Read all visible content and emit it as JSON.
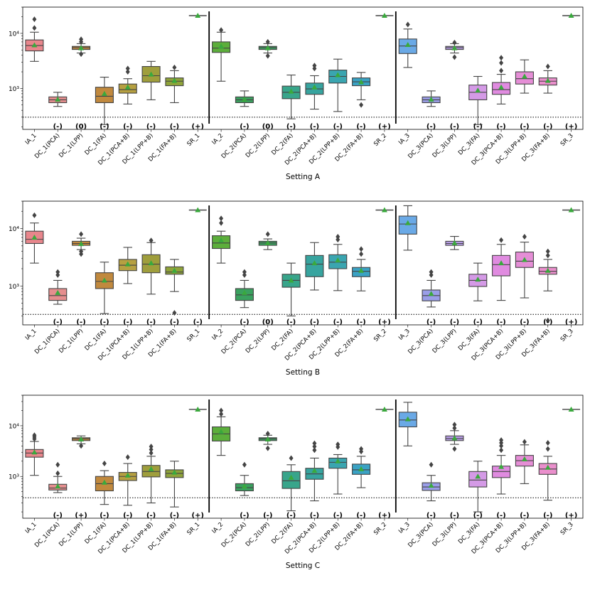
{
  "figure": {
    "type": "box",
    "y_scale": "log",
    "colors": {
      "IA": [
        "#e8868c",
        "#5cae3b",
        "#6aa9e6"
      ],
      "DC_PCA": [
        "#e58e8e",
        "#3aa15f",
        "#9a9ee8"
      ],
      "DC_LPP": [
        "#c1893e",
        "#3aa15f",
        "#b99ee8"
      ],
      "DC_FA": [
        "#c1893e",
        "#38a58b",
        "#d49ae6"
      ],
      "DC_PCA_B": [
        "#b6a041",
        "#37a49f",
        "#e08be0"
      ],
      "DC_LPP_B": [
        "#9f9e3c",
        "#3aa5b0",
        "#e58ed6"
      ],
      "DC_FA_B": [
        "#8fa33a",
        "#3aa2c4",
        "#ea8fcc"
      ],
      "SR": "#3a9e3f",
      "mean_marker": "#3aa93d"
    }
  },
  "chart_data": [
    {
      "type": "box",
      "xlabel": "Setting A",
      "ylim": [
        180,
        30000
      ],
      "threshold": 300,
      "yticks": [
        {
          "v": 1000,
          "label": "10³"
        },
        {
          "v": 10000,
          "label": "10⁴"
        }
      ],
      "categories": [
        "IA_1",
        "DC_1(PCA)",
        "DC_1(LPP)",
        "DC_1(FA)",
        "DC_1(PCA+B)",
        "DC_1(LPP+B)",
        "DC_1(FA+B)",
        "SR_1",
        "IA_2",
        "DC_2(PCA)",
        "DC_2(LPP)",
        "DC_2(FA)",
        "DC_2(PCA+B)",
        "DC_2(LPP+B)",
        "DC_2(FA+B)",
        "SR_2",
        "IA_3",
        "DC_3(PCA)",
        "DC_3(LPP)",
        "DC_3(FA)",
        "DC_3(PCA+B)",
        "DC_3(LPP+B)",
        "DC_3(FA+B)",
        "SR_3"
      ],
      "annotations": [
        "",
        "(-)",
        "(0)",
        "(-)",
        "(-)",
        "(-)",
        "(-)",
        "(+)",
        "",
        "(-)",
        "(0)",
        "(-)",
        "(-)",
        "(-)",
        "(-)",
        "(+)",
        "",
        "(-)",
        "(-)",
        "(-)",
        "(-)",
        "(-)",
        "(-)",
        "(+)"
      ],
      "boxes": [
        {
          "lw": 3100,
          "q1": 4800,
          "med": 6000,
          "q3": 7600,
          "uw": 10500,
          "mean": 6100,
          "fl": [
            12500,
            18000
          ]
        },
        {
          "lw": 470,
          "q1": 550,
          "med": 620,
          "q3": 700,
          "uw": 850,
          "mean": 630,
          "fl": []
        },
        {
          "lw": 4400,
          "q1": 5100,
          "med": 5500,
          "q3": 5800,
          "uw": 6500,
          "mean": 5400,
          "fl": [
            4200,
            7000,
            7800
          ]
        },
        {
          "lw": 220,
          "q1": 550,
          "med": 720,
          "q3": 1050,
          "uw": 1600,
          "mean": 800,
          "fl": []
        },
        {
          "lw": 520,
          "q1": 820,
          "med": 950,
          "q3": 1200,
          "uw": 1500,
          "mean": 1050,
          "fl": [
            2000,
            2300
          ]
        },
        {
          "lw": 620,
          "q1": 1300,
          "med": 1700,
          "q3": 2500,
          "uw": 3100,
          "mean": 1800,
          "fl": []
        },
        {
          "lw": 550,
          "q1": 1120,
          "med": 1350,
          "q3": 1550,
          "uw": 2100,
          "mean": 1380,
          "fl": [
            2400
          ]
        },
        {
          "lw": 21000,
          "q1": 21000,
          "med": 21000,
          "q3": 21000,
          "uw": 21000,
          "mean": 21000,
          "fl": []
        },
        {
          "lw": 1350,
          "q1": 4500,
          "med": 5400,
          "q3": 7000,
          "uw": 10500,
          "mean": 5800,
          "fl": [
            11500
          ]
        },
        {
          "lw": 470,
          "q1": 550,
          "med": 620,
          "q3": 700,
          "uw": 900,
          "mean": 630,
          "fl": []
        },
        {
          "lw": 4400,
          "q1": 5100,
          "med": 5500,
          "q3": 5800,
          "uw": 6500,
          "mean": 5400,
          "fl": [
            3900,
            7000
          ]
        },
        {
          "lw": 280,
          "q1": 650,
          "med": 850,
          "q3": 1100,
          "uw": 1750,
          "mean": 880,
          "fl": []
        },
        {
          "lw": 420,
          "q1": 780,
          "med": 980,
          "q3": 1250,
          "uw": 1700,
          "mean": 1050,
          "fl": [
            2300,
            2600
          ]
        },
        {
          "lw": 380,
          "q1": 1250,
          "med": 1650,
          "q3": 2150,
          "uw": 3400,
          "mean": 1750,
          "fl": []
        },
        {
          "lw": 620,
          "q1": 1120,
          "med": 1320,
          "q3": 1550,
          "uw": 1950,
          "mean": 1300,
          "fl": [
            500
          ]
        },
        {
          "lw": 21000,
          "q1": 21000,
          "med": 21000,
          "q3": 21000,
          "uw": 21000,
          "mean": 21000,
          "fl": []
        },
        {
          "lw": 2400,
          "q1": 4300,
          "med": 5900,
          "q3": 7900,
          "uw": 12000,
          "mean": 6200,
          "fl": [
            14500
          ]
        },
        {
          "lw": 470,
          "q1": 550,
          "med": 620,
          "q3": 700,
          "uw": 900,
          "mean": 630,
          "fl": []
        },
        {
          "lw": 4400,
          "q1": 5100,
          "med": 5500,
          "q3": 5800,
          "uw": 6500,
          "mean": 5400,
          "fl": [
            3700,
            6800
          ]
        },
        {
          "lw": 220,
          "q1": 620,
          "med": 850,
          "q3": 1150,
          "uw": 1650,
          "mean": 920,
          "fl": []
        },
        {
          "lw": 520,
          "q1": 780,
          "med": 950,
          "q3": 1280,
          "uw": 1800,
          "mean": 1050,
          "fl": [
            2100,
            2900,
            3600
          ]
        },
        {
          "lw": 820,
          "q1": 1200,
          "med": 1500,
          "q3": 2000,
          "uw": 3300,
          "mean": 1650,
          "fl": []
        },
        {
          "lw": 820,
          "q1": 1150,
          "med": 1350,
          "q3": 1550,
          "uw": 2100,
          "mean": 1380,
          "fl": [
            2500
          ]
        },
        {
          "lw": 21000,
          "q1": 21000,
          "med": 21000,
          "q3": 21000,
          "uw": 21000,
          "mean": 21000,
          "fl": []
        }
      ]
    },
    {
      "type": "box",
      "xlabel": "Setting B",
      "ylim": [
        210,
        30000
      ],
      "threshold": 320,
      "yticks": [
        {
          "v": 1000,
          "label": "10³"
        },
        {
          "v": 10000,
          "label": "10⁴"
        }
      ],
      "categories": [
        "IA_1",
        "DC_1(PCA)",
        "DC_1(LPP)",
        "DC_1(FA)",
        "DC_1(PCA+B)",
        "DC_1(LPP+B)",
        "DC_1(FA+B)",
        "SR_1",
        "IA_2",
        "DC_2(PCA)",
        "DC_2(LPP)",
        "DC_2(FA)",
        "DC_2(PCA+B)",
        "DC_2(LPP+B)",
        "DC_2(FA+B)",
        "SR_2",
        "IA_3",
        "DC_3(PCA)",
        "DC_3(LPP)",
        "DC_3(FA)",
        "DC_3(PCA+B)",
        "DC_3(LPP+B)",
        "DC_3(FA+B)",
        "SR_3"
      ],
      "annotations": [
        "",
        "(-)",
        "(-)",
        "(-)",
        "(-)",
        "(-)",
        "(-)",
        "(-)",
        "",
        "(-)",
        "(0)",
        "(-)",
        "(-)",
        "(-)",
        "(-)",
        "(+)",
        "",
        "(-)",
        "(-)",
        "(-)",
        "(-)",
        "(-)",
        "(-)",
        "(+)"
      ],
      "boxes": [
        {
          "lw": 2500,
          "q1": 5500,
          "med": 6500,
          "q3": 9000,
          "uw": 12500,
          "mean": 7000,
          "fl": [
            17000
          ]
        },
        {
          "lw": 480,
          "q1": 560,
          "med": 680,
          "q3": 900,
          "uw": 1250,
          "mean": 760,
          "fl": [
            1550,
            1750
          ]
        },
        {
          "lw": 4300,
          "q1": 5100,
          "med": 5500,
          "q3": 6000,
          "uw": 6800,
          "mean": 5400,
          "fl": [
            3600,
            4000,
            8000
          ]
        },
        {
          "lw": 330,
          "q1": 900,
          "med": 1200,
          "q3": 1700,
          "uw": 2600,
          "mean": 1250,
          "fl": []
        },
        {
          "lw": 1100,
          "q1": 1850,
          "med": 2300,
          "q3": 2900,
          "uw": 4700,
          "mean": 2400,
          "fl": []
        },
        {
          "lw": 720,
          "q1": 1700,
          "med": 2400,
          "q3": 3500,
          "uw": 5700,
          "mean": 2500,
          "fl": [
            6200
          ]
        },
        {
          "lw": 800,
          "q1": 1600,
          "med": 1750,
          "q3": 2150,
          "uw": 2900,
          "mean": 1850,
          "fl": [
            340
          ]
        },
        {
          "lw": 21000,
          "q1": 21000,
          "med": 21000,
          "q3": 21000,
          "uw": 21000,
          "mean": 21000,
          "fl": []
        },
        {
          "lw": 2500,
          "q1": 4500,
          "med": 5600,
          "q3": 7500,
          "uw": 9000,
          "mean": 6200,
          "fl": [
            12500,
            15000
          ]
        },
        {
          "lw": 420,
          "q1": 560,
          "med": 700,
          "q3": 900,
          "uw": 1250,
          "mean": 760,
          "fl": [
            1550,
            1750
          ]
        },
        {
          "lw": 4300,
          "q1": 5100,
          "med": 5600,
          "q3": 6000,
          "uw": 6600,
          "mean": 5600,
          "fl": [
            8000
          ]
        },
        {
          "lw": 300,
          "q1": 950,
          "med": 1250,
          "q3": 1600,
          "uw": 2500,
          "mean": 1250,
          "fl": []
        },
        {
          "lw": 850,
          "q1": 1450,
          "med": 2400,
          "q3": 3400,
          "uw": 5700,
          "mean": 2500,
          "fl": []
        },
        {
          "lw": 830,
          "q1": 2000,
          "med": 2600,
          "q3": 3500,
          "uw": 5300,
          "mean": 2800,
          "fl": [
            6400,
            7200
          ]
        },
        {
          "lw": 820,
          "q1": 1450,
          "med": 1800,
          "q3": 2100,
          "uw": 2900,
          "mean": 1850,
          "fl": [
            3600,
            4400
          ]
        },
        {
          "lw": 21000,
          "q1": 21000,
          "med": 21000,
          "q3": 21000,
          "uw": 21000,
          "mean": 21000,
          "fl": []
        },
        {
          "lw": 4200,
          "q1": 8000,
          "med": 12000,
          "q3": 16500,
          "uw": 25000,
          "mean": 12500,
          "fl": []
        },
        {
          "lw": 430,
          "q1": 550,
          "med": 680,
          "q3": 850,
          "uw": 1250,
          "mean": 730,
          "fl": [
            1550,
            1750
          ]
        },
        {
          "lw": 4300,
          "q1": 5100,
          "med": 5500,
          "q3": 6000,
          "uw": 7300,
          "mean": 5600,
          "fl": []
        },
        {
          "lw": 550,
          "q1": 980,
          "med": 1250,
          "q3": 1600,
          "uw": 2500,
          "mean": 1300,
          "fl": []
        },
        {
          "lw": 560,
          "q1": 1500,
          "med": 2350,
          "q3": 3400,
          "uw": 5300,
          "mean": 2500,
          "fl": [
            6300
          ]
        },
        {
          "lw": 620,
          "q1": 2100,
          "med": 2700,
          "q3": 3900,
          "uw": 5800,
          "mean": 2850,
          "fl": [
            7200
          ]
        },
        {
          "lw": 820,
          "q1": 1600,
          "med": 1800,
          "q3": 2100,
          "uw": 2900,
          "mean": 1850,
          "fl": [
            250,
            3400,
            4000
          ]
        },
        {
          "lw": 21000,
          "q1": 21000,
          "med": 21000,
          "q3": 21000,
          "uw": 21000,
          "mean": 21000,
          "fl": []
        }
      ]
    },
    {
      "type": "box",
      "xlabel": "Setting C",
      "ylim": [
        150,
        40000
      ],
      "threshold": 380,
      "yticks": [
        {
          "v": 1000,
          "label": "10³"
        },
        {
          "v": 10000,
          "label": "10⁴"
        }
      ],
      "categories": [
        "IA_1",
        "DC_1(PCA)",
        "DC_1(LPP)",
        "DC_1(FA)",
        "DC_1(PCA+B)",
        "DC_1(LPP+B)",
        "DC_1(FA+B)",
        "SR_1",
        "IA_2",
        "DC_2(PCA)",
        "DC_2(LPP)",
        "DC_2(FA)",
        "DC_2(PCA+B)",
        "DC_2(LPP+B)",
        "DC_2(FA+B)",
        "SR_2",
        "IA_3",
        "DC_3(PCA)",
        "DC_3(LPP)",
        "DC_3(FA)",
        "DC_3(PCA+B)",
        "DC_3(LPP+B)",
        "DC_3(FA+B)",
        "SR_3"
      ],
      "annotations": [
        "",
        "(-)",
        "(+)",
        "(-)",
        "(-)",
        "(-)",
        "(-)",
        "(+)",
        "",
        "(-)",
        "(-)",
        "(-)",
        "(-)",
        "(-)",
        "(-)",
        "(+)",
        "",
        "(-)",
        "(-)",
        "(-)",
        "(-)",
        "(-)",
        "(-)",
        "(+)"
      ],
      "boxes": [
        {
          "lw": 1050,
          "q1": 2400,
          "med": 2900,
          "q3": 3400,
          "uw": 4900,
          "mean": 3000,
          "fl": [
            5500,
            6000,
            6500
          ]
        },
        {
          "lw": 480,
          "q1": 540,
          "med": 590,
          "q3": 700,
          "uw": 1000,
          "mean": 640,
          "fl": [
            1150,
            1700
          ]
        },
        {
          "lw": 4400,
          "q1": 5100,
          "med": 5500,
          "q3": 5800,
          "uw": 6300,
          "mean": 5400,
          "fl": [
            4000
          ]
        },
        {
          "lw": 280,
          "q1": 520,
          "med": 720,
          "q3": 1000,
          "uw": 1300,
          "mean": 760,
          "fl": [
            1800
          ]
        },
        {
          "lw": 270,
          "q1": 830,
          "med": 1000,
          "q3": 1200,
          "uw": 1800,
          "mean": 1050,
          "fl": [
            2400
          ]
        },
        {
          "lw": 300,
          "q1": 980,
          "med": 1250,
          "q3": 1650,
          "uw": 2500,
          "mean": 1400,
          "fl": [
            2900,
            3400,
            3900
          ]
        },
        {
          "lw": 250,
          "q1": 950,
          "med": 1150,
          "q3": 1350,
          "uw": 2000,
          "mean": 1200,
          "fl": []
        },
        {
          "lw": 21000,
          "q1": 21000,
          "med": 21000,
          "q3": 21000,
          "uw": 21000,
          "mean": 21000,
          "fl": []
        },
        {
          "lw": 2600,
          "q1": 5000,
          "med": 6900,
          "q3": 9500,
          "uw": 15000,
          "mean": 7600,
          "fl": [
            17000,
            20000
          ]
        },
        {
          "lw": 420,
          "q1": 520,
          "med": 600,
          "q3": 720,
          "uw": 1050,
          "mean": 640,
          "fl": [
            1700
          ]
        },
        {
          "lw": 4300,
          "q1": 5100,
          "med": 5500,
          "q3": 5800,
          "uw": 6500,
          "mean": 5400,
          "fl": [
            3600,
            7000
          ]
        },
        {
          "lw": 210,
          "q1": 580,
          "med": 820,
          "q3": 1250,
          "uw": 1700,
          "mean": 950,
          "fl": [
            2300
          ]
        },
        {
          "lw": 330,
          "q1": 880,
          "med": 1120,
          "q3": 1450,
          "uw": 2300,
          "mean": 1300,
          "fl": [
            3300,
            3900,
            4500
          ]
        },
        {
          "lw": 450,
          "q1": 1450,
          "med": 1900,
          "q3": 2300,
          "uw": 2700,
          "mean": 2000,
          "fl": [
            3800,
            4300
          ]
        },
        {
          "lw": 600,
          "q1": 1100,
          "med": 1350,
          "q3": 1750,
          "uw": 2500,
          "mean": 1400,
          "fl": [
            3100,
            3500
          ]
        },
        {
          "lw": 21000,
          "q1": 21000,
          "med": 21000,
          "q3": 21000,
          "uw": 21000,
          "mean": 21000,
          "fl": []
        },
        {
          "lw": 4000,
          "q1": 9500,
          "med": 13000,
          "q3": 18500,
          "uw": 29000,
          "mean": 13500,
          "fl": []
        },
        {
          "lw": 330,
          "q1": 530,
          "med": 620,
          "q3": 750,
          "uw": 1050,
          "mean": 660,
          "fl": [
            1700
          ]
        },
        {
          "lw": 4300,
          "q1": 5100,
          "med": 5600,
          "q3": 6300,
          "uw": 8000,
          "mean": 5700,
          "fl": [
            3500,
            9000,
            10500
          ]
        },
        {
          "lw": 200,
          "q1": 620,
          "med": 850,
          "q3": 1250,
          "uw": 2000,
          "mean": 1000,
          "fl": []
        },
        {
          "lw": 450,
          "q1": 950,
          "med": 1250,
          "q3": 1600,
          "uw": 2600,
          "mean": 1550,
          "fl": [
            3300,
            4000,
            4600,
            5200
          ]
        },
        {
          "lw": 720,
          "q1": 1600,
          "med": 2050,
          "q3": 2600,
          "uw": 4200,
          "mean": 2200,
          "fl": [
            4800
          ]
        },
        {
          "lw": 340,
          "q1": 1100,
          "med": 1400,
          "q3": 1800,
          "uw": 2500,
          "mean": 1500,
          "fl": [
            3500,
            4600
          ]
        },
        {
          "lw": 21000,
          "q1": 21000,
          "med": 21000,
          "q3": 21000,
          "uw": 21000,
          "mean": 21000,
          "fl": []
        }
      ]
    }
  ]
}
